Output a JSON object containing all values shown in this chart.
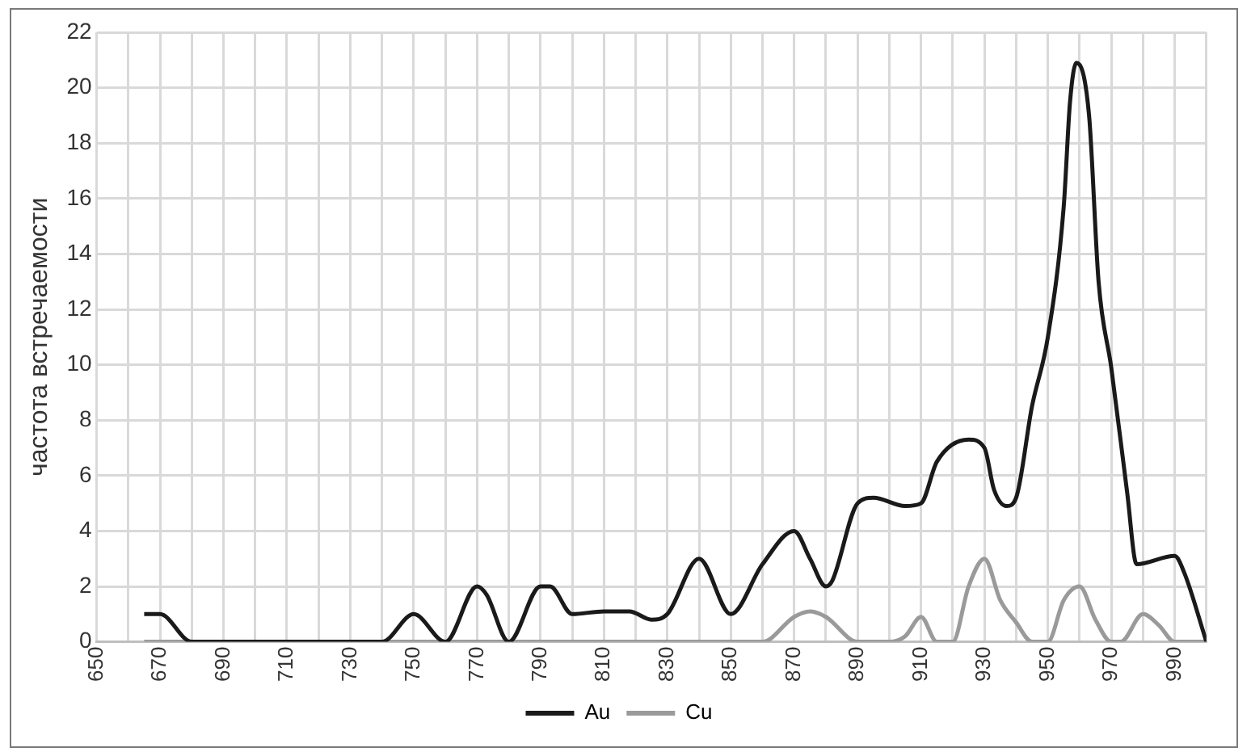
{
  "chart_data": {
    "type": "line",
    "ylabel": "частота встречаемости",
    "xlim": [
      650,
      1000
    ],
    "xticks": [
      650,
      {
        "value": 660,
        "label": null
      },
      670,
      {
        "value": 680,
        "label": null
      },
      690,
      {
        "value": 700,
        "label": null
      },
      710,
      {
        "value": 720,
        "label": null
      },
      730,
      {
        "value": 740,
        "label": null
      },
      750,
      {
        "value": 760,
        "label": null
      },
      770,
      {
        "value": 780,
        "label": null
      },
      790,
      {
        "value": 800,
        "label": null
      },
      810,
      {
        "value": 820,
        "label": null
      },
      830,
      {
        "value": 840,
        "label": null
      },
      850,
      {
        "value": 860,
        "label": null
      },
      870,
      {
        "value": 880,
        "label": null
      },
      890,
      {
        "value": 900,
        "label": null
      },
      910,
      {
        "value": 920,
        "label": null
      },
      930,
      {
        "value": 940,
        "label": null
      },
      950,
      {
        "value": 960,
        "label": null
      },
      970,
      {
        "value": 980,
        "label": null
      },
      990,
      {
        "value": 1000,
        "label": null
      }
    ],
    "ylim": [
      0,
      22
    ],
    "yticks": [
      0,
      2,
      4,
      6,
      8,
      10,
      12,
      14,
      16,
      18,
      20,
      22
    ],
    "grid": true,
    "legend": "bottom",
    "marker": "none",
    "line_style": "solid",
    "series": [
      {
        "name": "Au",
        "color": "#1a1a1a",
        "x": [
          665,
          670,
          680,
          690,
          700,
          710,
          720,
          730,
          740,
          750,
          760,
          770,
          773,
          780,
          790,
          793,
          800,
          810,
          818,
          825,
          830,
          840,
          850,
          860,
          870,
          875,
          880,
          882,
          890,
          895,
          905,
          910,
          915,
          925,
          930,
          933,
          937,
          940,
          945,
          950,
          955,
          957,
          959,
          963,
          966,
          970,
          975,
          978,
          990,
          993,
          1000
        ],
        "values": [
          1,
          1,
          0,
          0,
          0,
          0,
          0,
          0,
          0,
          1,
          0,
          2,
          1.7,
          0,
          2,
          2,
          1,
          1.1,
          1.1,
          0.8,
          1,
          3,
          1,
          2.8,
          4,
          3,
          2,
          2.2,
          5,
          5.2,
          4.9,
          5,
          6.5,
          7.3,
          7,
          5.5,
          4.9,
          5.2,
          8.5,
          11,
          15.7,
          19.5,
          20.9,
          19,
          13,
          9.9,
          5.4,
          2.8,
          3.1,
          2.5,
          0
        ]
      },
      {
        "name": "Cu",
        "color": "#9a9a9a",
        "x": [
          665,
          680,
          700,
          720,
          740,
          760,
          780,
          800,
          820,
          840,
          860,
          870,
          875,
          880,
          890,
          900,
          905,
          910,
          915,
          920,
          925,
          930,
          935,
          940,
          945,
          950,
          955,
          960,
          965,
          970,
          973,
          980,
          985,
          990,
          1000
        ],
        "values": [
          0,
          0,
          0,
          0,
          0,
          0,
          0,
          0,
          0,
          0,
          0,
          0.9,
          1.1,
          0.9,
          0,
          0,
          0.2,
          0.9,
          0,
          0,
          2,
          3,
          1.5,
          0.7,
          0,
          0,
          1.5,
          2,
          0.8,
          0,
          0,
          1,
          0.6,
          0,
          0
        ]
      }
    ]
  }
}
